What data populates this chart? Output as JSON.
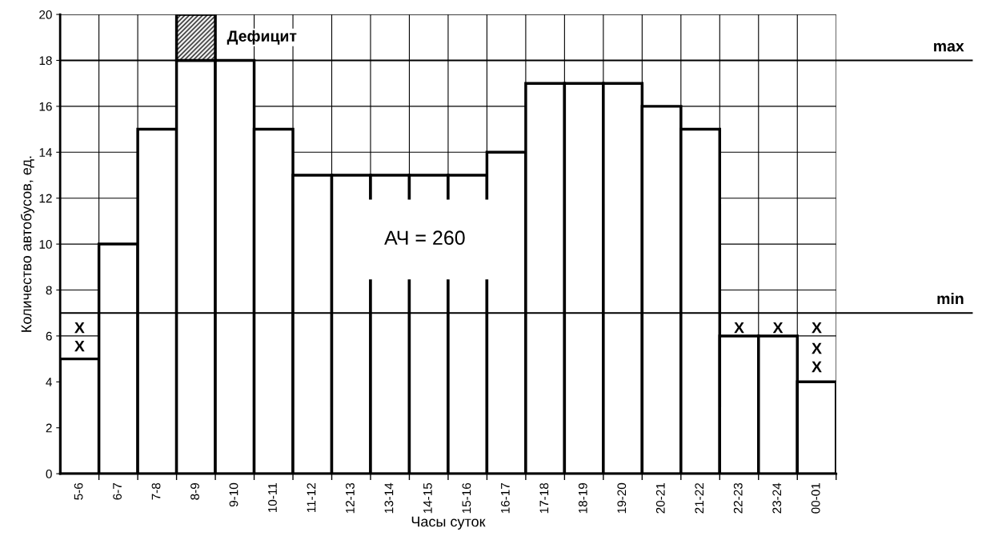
{
  "chart_data": {
    "type": "bar",
    "stacked": true,
    "categories": [
      "5-6",
      "6-7",
      "7-8",
      "8-9",
      "9-10",
      "10-11",
      "11-12",
      "12-13",
      "13-14",
      "14-15",
      "15-16",
      "16-17",
      "17-18",
      "18-19",
      "19-20",
      "20-21",
      "21-22",
      "22-23",
      "23-24",
      "00-01"
    ],
    "series": [
      {
        "color": "#ffffff",
        "values": [
          5,
          10,
          15,
          18,
          18,
          15,
          13,
          13,
          13,
          13,
          13,
          14,
          17,
          17,
          17,
          16,
          15,
          6,
          6,
          4
        ]
      },
      {
        "color": "#000000",
        "values": [
          null,
          null,
          null,
          2,
          null,
          null,
          null,
          null,
          null,
          null,
          null,
          null,
          null,
          null,
          null,
          null,
          null,
          null,
          null,
          null
        ]
      }
    ],
    "xlabel": "Часы суток",
    "ylabel": "Количество автобусов, ед.",
    "ylim": [
      0,
      20
    ],
    "yticks": [
      0,
      2,
      4,
      6,
      8,
      10,
      12,
      14,
      16,
      18,
      20
    ],
    "grid": true,
    "ref_lines": [
      {
        "axis": "y",
        "value": 18,
        "label": "max"
      },
      {
        "axis": "y",
        "value": 7,
        "label": "min"
      }
    ],
    "annotations": [
      "Дефицит",
      "АЧ = 260",
      "X",
      "X",
      "X",
      "X",
      "X",
      "X",
      "X"
    ]
  }
}
